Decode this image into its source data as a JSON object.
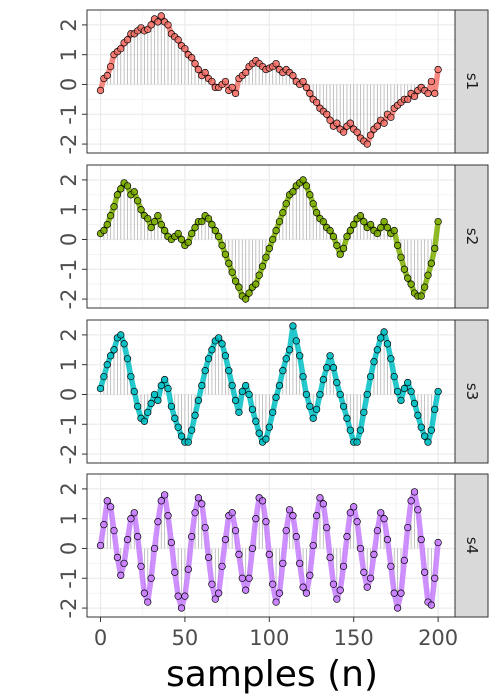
{
  "chart_data": {
    "type": "line",
    "xlabel": "samples (n)",
    "ylabel": "",
    "xlim": [
      -8,
      210
    ],
    "ylim": [
      -2.3,
      2.5
    ],
    "x_ticks": [
      0,
      50,
      100,
      150,
      200
    ],
    "y_ticks": [
      -2,
      -1,
      0,
      1,
      2
    ],
    "panel_layout": "stacked-vertical",
    "strip_position": "right",
    "grid": true,
    "line_style": "thick translucent line with vertical stems to zero and open circle markers",
    "x_step": 2,
    "series": [
      {
        "name": "s1",
        "color": "#F8766D",
        "values": [
          -0.2,
          0.2,
          0.3,
          0.6,
          1.0,
          1.1,
          1.2,
          1.4,
          1.5,
          1.7,
          1.7,
          1.8,
          1.9,
          1.8,
          1.85,
          2.0,
          2.2,
          2.1,
          2.3,
          2.1,
          2.0,
          1.7,
          1.6,
          1.5,
          1.3,
          1.2,
          1.0,
          0.9,
          0.7,
          0.5,
          0.3,
          0.4,
          0.2,
          0.1,
          -0.1,
          -0.1,
          0.0,
          0.1,
          -0.2,
          -0.1,
          -0.3,
          0.2,
          0.3,
          0.4,
          0.6,
          0.7,
          0.8,
          0.7,
          0.6,
          0.5,
          0.55,
          0.6,
          0.7,
          0.5,
          0.4,
          0.5,
          0.4,
          0.3,
          0.1,
          0.0,
          0.1,
          -0.1,
          -0.3,
          -0.5,
          -0.6,
          -0.8,
          -0.9,
          -1.0,
          -1.2,
          -1.4,
          -1.3,
          -1.5,
          -1.6,
          -1.4,
          -1.3,
          -1.5,
          -1.6,
          -1.8,
          -1.9,
          -2.0,
          -1.7,
          -1.5,
          -1.4,
          -1.2,
          -1.3,
          -1.0,
          -1.1,
          -0.8,
          -0.7,
          -0.6,
          -0.5,
          -0.5,
          -0.3,
          -0.4,
          -0.2,
          -0.1,
          -0.2,
          -0.3,
          0.1,
          -0.3,
          0.5
        ]
      },
      {
        "name": "s2",
        "color": "#7CAE00",
        "values": [
          0.2,
          0.3,
          0.5,
          0.8,
          1.1,
          1.5,
          1.7,
          1.9,
          1.8,
          1.5,
          1.6,
          1.3,
          1.0,
          0.8,
          0.7,
          0.4,
          0.6,
          0.8,
          0.5,
          0.3,
          0.1,
          0.0,
          0.1,
          0.2,
          0.0,
          -0.2,
          -0.1,
          0.2,
          0.4,
          0.6,
          0.6,
          0.8,
          0.7,
          0.5,
          0.3,
          0.1,
          -0.2,
          -0.5,
          -0.8,
          -1.1,
          -1.4,
          -1.6,
          -1.9,
          -2.0,
          -1.8,
          -1.6,
          -1.5,
          -1.2,
          -0.9,
          -0.6,
          -0.3,
          0.0,
          0.3,
          0.6,
          0.9,
          1.2,
          1.5,
          1.6,
          1.8,
          1.9,
          2.0,
          1.8,
          1.5,
          1.2,
          0.9,
          0.7,
          0.6,
          0.4,
          0.3,
          0.1,
          -0.2,
          -0.5,
          -0.3,
          0.1,
          0.3,
          0.5,
          0.7,
          0.8,
          0.6,
          0.4,
          0.5,
          0.3,
          0.2,
          0.4,
          0.6,
          0.4,
          0.2,
          0.3,
          -0.2,
          -0.6,
          -1.0,
          -1.3,
          -1.5,
          -1.8,
          -1.9,
          -1.9,
          -1.6,
          -1.2,
          -0.8,
          -0.3,
          0.6
        ]
      },
      {
        "name": "s3",
        "color": "#00BFC4",
        "values": [
          0.2,
          0.6,
          1.0,
          1.3,
          1.5,
          1.9,
          2.0,
          1.7,
          1.2,
          0.6,
          0.1,
          -0.4,
          -0.8,
          -0.9,
          -0.6,
          -0.3,
          0.0,
          -0.2,
          0.3,
          0.5,
          0.2,
          -0.4,
          -0.8,
          -1.1,
          -1.4,
          -1.6,
          -1.6,
          -1.2,
          -0.7,
          -0.2,
          0.3,
          0.8,
          1.2,
          1.5,
          1.8,
          1.9,
          1.7,
          1.3,
          0.8,
          0.3,
          -0.2,
          -0.6,
          0.1,
          0.3,
          0.0,
          -0.5,
          -0.9,
          -1.3,
          -1.6,
          -1.5,
          -1.1,
          -0.6,
          -0.1,
          0.3,
          0.8,
          1.2,
          1.5,
          2.3,
          1.8,
          1.3,
          0.6,
          0.0,
          -0.4,
          -0.8,
          -0.5,
          0.0,
          0.5,
          0.9,
          1.3,
          0.9,
          0.4,
          0.0,
          -0.4,
          -0.8,
          -1.2,
          -1.6,
          -1.6,
          -1.2,
          -0.6,
          0.0,
          0.6,
          1.1,
          1.5,
          1.9,
          2.1,
          1.7,
          1.2,
          0.6,
          0.1,
          -0.2,
          0.2,
          0.4,
          0.1,
          -0.3,
          -0.7,
          -1.1,
          -1.4,
          -1.6,
          -1.2,
          -0.5,
          0.1
        ]
      },
      {
        "name": "s4",
        "color": "#C77CFF",
        "values": [
          0.1,
          0.8,
          1.6,
          1.4,
          0.6,
          -0.3,
          -0.9,
          -0.5,
          0.3,
          1.0,
          1.2,
          0.4,
          -0.6,
          -1.5,
          -1.8,
          -1.0,
          0.0,
          0.9,
          1.6,
          1.8,
          1.1,
          0.2,
          -0.8,
          -1.6,
          -2.0,
          -1.6,
          -0.7,
          0.4,
          1.2,
          1.7,
          1.5,
          0.7,
          -0.3,
          -1.2,
          -1.7,
          -1.5,
          -0.6,
          0.3,
          1.1,
          1.2,
          0.6,
          -0.2,
          -1.0,
          -1.4,
          -1.0,
          0.0,
          1.0,
          1.7,
          1.6,
          0.9,
          -0.2,
          -1.2,
          -1.8,
          -1.5,
          -0.5,
          0.6,
          1.3,
          1.1,
          0.4,
          -0.5,
          -1.3,
          -1.5,
          -0.9,
          0.1,
          1.1,
          1.7,
          1.5,
          0.7,
          -0.3,
          -1.2,
          -1.7,
          -1.4,
          -0.6,
          0.4,
          1.2,
          1.4,
          0.9,
          0.0,
          -0.8,
          -1.3,
          -1.0,
          -0.2,
          0.6,
          1.2,
          1.0,
          0.3,
          -0.6,
          -1.5,
          -2.0,
          -1.5,
          -0.4,
          0.7,
          1.6,
          1.9,
          1.3,
          0.3,
          -0.8,
          -1.8,
          -1.9,
          -1.0,
          0.2
        ]
      }
    ]
  }
}
